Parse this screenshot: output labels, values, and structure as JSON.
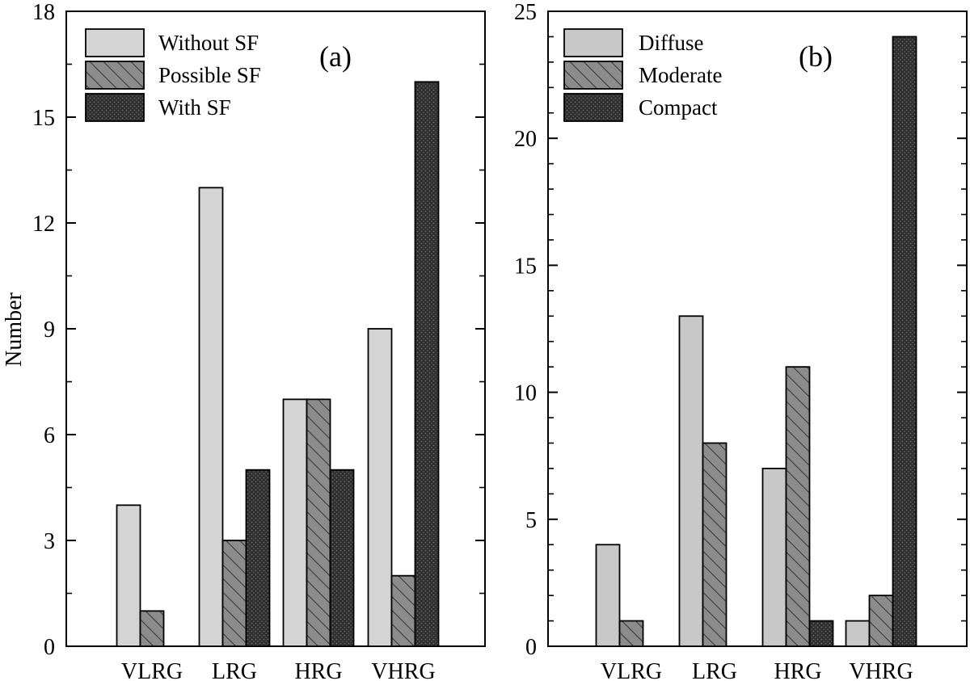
{
  "chart_data": [
    {
      "type": "bar",
      "panel_label": "(a)",
      "ylabel": "Number",
      "xlabel": "",
      "categories": [
        "VLRG",
        "LRG",
        "HRG",
        "VHRG"
      ],
      "ylim": [
        0,
        18
      ],
      "yticks": [
        0,
        3,
        6,
        9,
        12,
        15,
        18
      ],
      "legend_position": "top-left",
      "grid": false,
      "series": [
        {
          "name": "Without SF",
          "values": [
            4,
            13,
            7,
            9
          ],
          "color": "#d4d4d4",
          "pattern": "solid"
        },
        {
          "name": "Possible SF",
          "values": [
            1,
            3,
            7,
            2
          ],
          "color": "#8c8c8c",
          "pattern": "hatch"
        },
        {
          "name": "With SF",
          "values": [
            0,
            5,
            5,
            16
          ],
          "color": "#2b2b2b",
          "pattern": "dots"
        }
      ]
    },
    {
      "type": "bar",
      "panel_label": "(b)",
      "ylabel": "",
      "xlabel": "",
      "categories": [
        "VLRG",
        "LRG",
        "HRG",
        "VHRG"
      ],
      "ylim": [
        0,
        25
      ],
      "yticks": [
        0,
        5,
        10,
        15,
        20,
        25
      ],
      "legend_position": "top-left",
      "grid": false,
      "series": [
        {
          "name": "Diffuse",
          "values": [
            4,
            13,
            7,
            1
          ],
          "color": "#c8c8c8",
          "pattern": "solid"
        },
        {
          "name": "Moderate",
          "values": [
            1,
            8,
            11,
            2
          ],
          "color": "#8c8c8c",
          "pattern": "hatch"
        },
        {
          "name": "Compact",
          "values": [
            0,
            0,
            1,
            24
          ],
          "color": "#2b2b2b",
          "pattern": "dots"
        }
      ]
    }
  ]
}
